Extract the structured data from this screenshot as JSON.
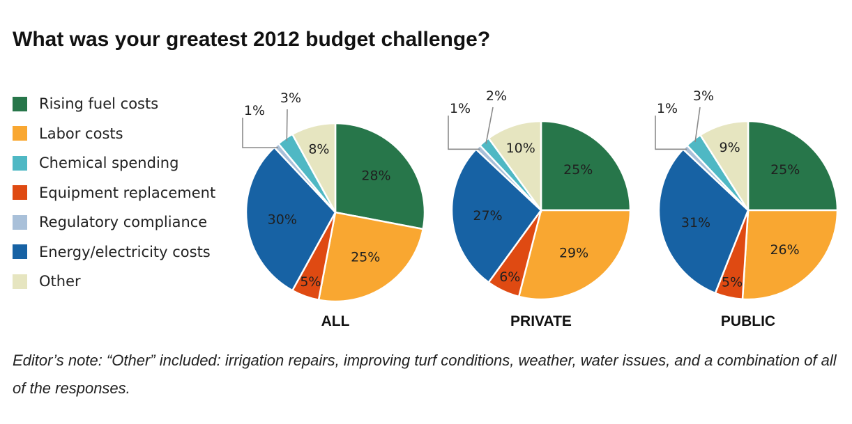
{
  "title": "What was your greatest 2012 budget challenge?",
  "legend": [
    {
      "label": "Rising fuel costs",
      "color": "#27764a"
    },
    {
      "label": "Labor costs",
      "color": "#f9a731"
    },
    {
      "label": "Chemical spending",
      "color": "#4fb8c4"
    },
    {
      "label": "Equipment replacement",
      "color": "#df4a12"
    },
    {
      "label": "Regulatory compliance",
      "color": "#a9c0d9"
    },
    {
      "label": "Energy/electricity costs",
      "color": "#1762a4"
    },
    {
      "label": "Other",
      "color": "#e6e5c0"
    }
  ],
  "chart_data": [
    {
      "type": "pie",
      "title": "ALL",
      "categories": [
        "Rising fuel costs",
        "Labor costs",
        "Equipment replacement",
        "Energy/electricity costs",
        "Regulatory compliance",
        "Chemical spending",
        "Other"
      ],
      "values": [
        28,
        25,
        5,
        30,
        1,
        3,
        8
      ],
      "labels": [
        "28%",
        "25%",
        "5%",
        "30%",
        "1%",
        "3%",
        "8%"
      ]
    },
    {
      "type": "pie",
      "title": "PRIVATE",
      "categories": [
        "Rising fuel costs",
        "Labor costs",
        "Equipment replacement",
        "Energy/electricity costs",
        "Regulatory compliance",
        "Chemical spending",
        "Other"
      ],
      "values": [
        25,
        29,
        6,
        27,
        1,
        2,
        10
      ],
      "labels": [
        "25%",
        "29%",
        "6%",
        "27%",
        "1%",
        "2%",
        "10%"
      ]
    },
    {
      "type": "pie",
      "title": "PUBLIC",
      "categories": [
        "Rising fuel costs",
        "Labor costs",
        "Equipment replacement",
        "Energy/electricity costs",
        "Regulatory compliance",
        "Chemical spending",
        "Other"
      ],
      "values": [
        25,
        26,
        5,
        31,
        1,
        3,
        9
      ],
      "labels": [
        "25%",
        "26%",
        "5%",
        "31%",
        "1%",
        "3%",
        "9%"
      ]
    }
  ],
  "note": "Editor’s note: “Other” included: irrigation repairs, improving turf conditions, weather, water issues, and a combination of all of the responses."
}
